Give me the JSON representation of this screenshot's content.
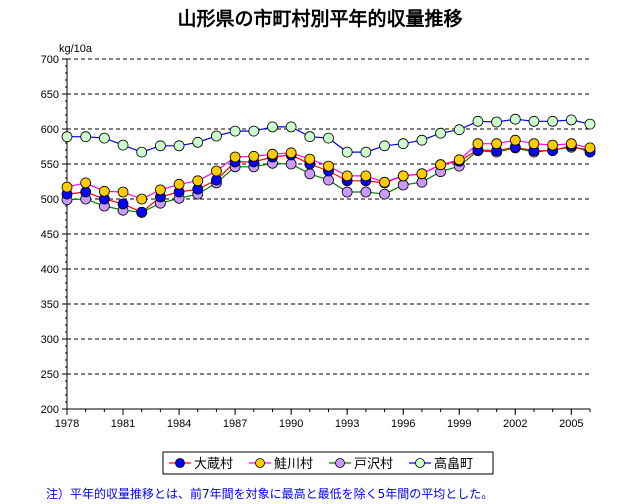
{
  "chart_data": {
    "type": "line",
    "title": "山形県の市町村別平年的収量推移",
    "ylabel": "kg/10a",
    "xlabel": "",
    "ylim": [
      200,
      700
    ],
    "yticks": [
      200,
      250,
      300,
      350,
      400,
      450,
      500,
      550,
      600,
      650,
      700
    ],
    "xlim": [
      1978,
      2006
    ],
    "xticks": [
      1978,
      1981,
      1984,
      1987,
      1990,
      1993,
      1996,
      1999,
      2002,
      2005
    ],
    "grid": "horizontal dashed",
    "legend": "bottom",
    "x": [
      1978,
      1979,
      1980,
      1981,
      1982,
      1983,
      1984,
      1985,
      1986,
      1987,
      1988,
      1989,
      1990,
      1991,
      1992,
      1993,
      1994,
      1995,
      1996,
      1997,
      1998,
      1999,
      2000,
      2001,
      2002,
      2003,
      2004,
      2005,
      2006
    ],
    "series": [
      {
        "name": "大蔵村",
        "line_color": "#ff0000",
        "marker_color": "#0000ff",
        "values": [
          507,
          510,
          500,
          493,
          481,
          503,
          510,
          514,
          527,
          553,
          553,
          560,
          563,
          550,
          540,
          526,
          526,
          523,
          533,
          536,
          549,
          554,
          570,
          569,
          574,
          569,
          569,
          576,
          567
        ]
      },
      {
        "name": "鮭川村",
        "line_color": "#ff00ff",
        "marker_color": "#ffcc00",
        "values": [
          517,
          523,
          511,
          510,
          500,
          513,
          521,
          526,
          540,
          560,
          561,
          564,
          566,
          557,
          547,
          533,
          533,
          524,
          533,
          536,
          549,
          556,
          579,
          579,
          584,
          579,
          577,
          579,
          573
        ]
      },
      {
        "name": "戸沢村",
        "line_color": "#008000",
        "marker_color": "#cc99ff",
        "values": [
          499,
          500,
          490,
          484,
          481,
          494,
          501,
          507,
          523,
          546,
          546,
          551,
          550,
          536,
          527,
          510,
          510,
          507,
          520,
          524,
          539,
          547,
          569,
          567,
          573,
          567,
          570,
          574,
          570
        ]
      },
      {
        "name": "高畠町",
        "line_color": "#0000ff",
        "marker_color": "#ccffcc",
        "values": [
          589,
          589,
          587,
          577,
          567,
          576,
          576,
          581,
          590,
          597,
          597,
          603,
          603,
          589,
          587,
          567,
          567,
          576,
          579,
          584,
          594,
          599,
          611,
          610,
          614,
          611,
          611,
          613,
          607
        ]
      }
    ]
  },
  "note": "注）平年的収量推移とは、前7年間を対象に最高と最低を除く5年間の平均とした。"
}
